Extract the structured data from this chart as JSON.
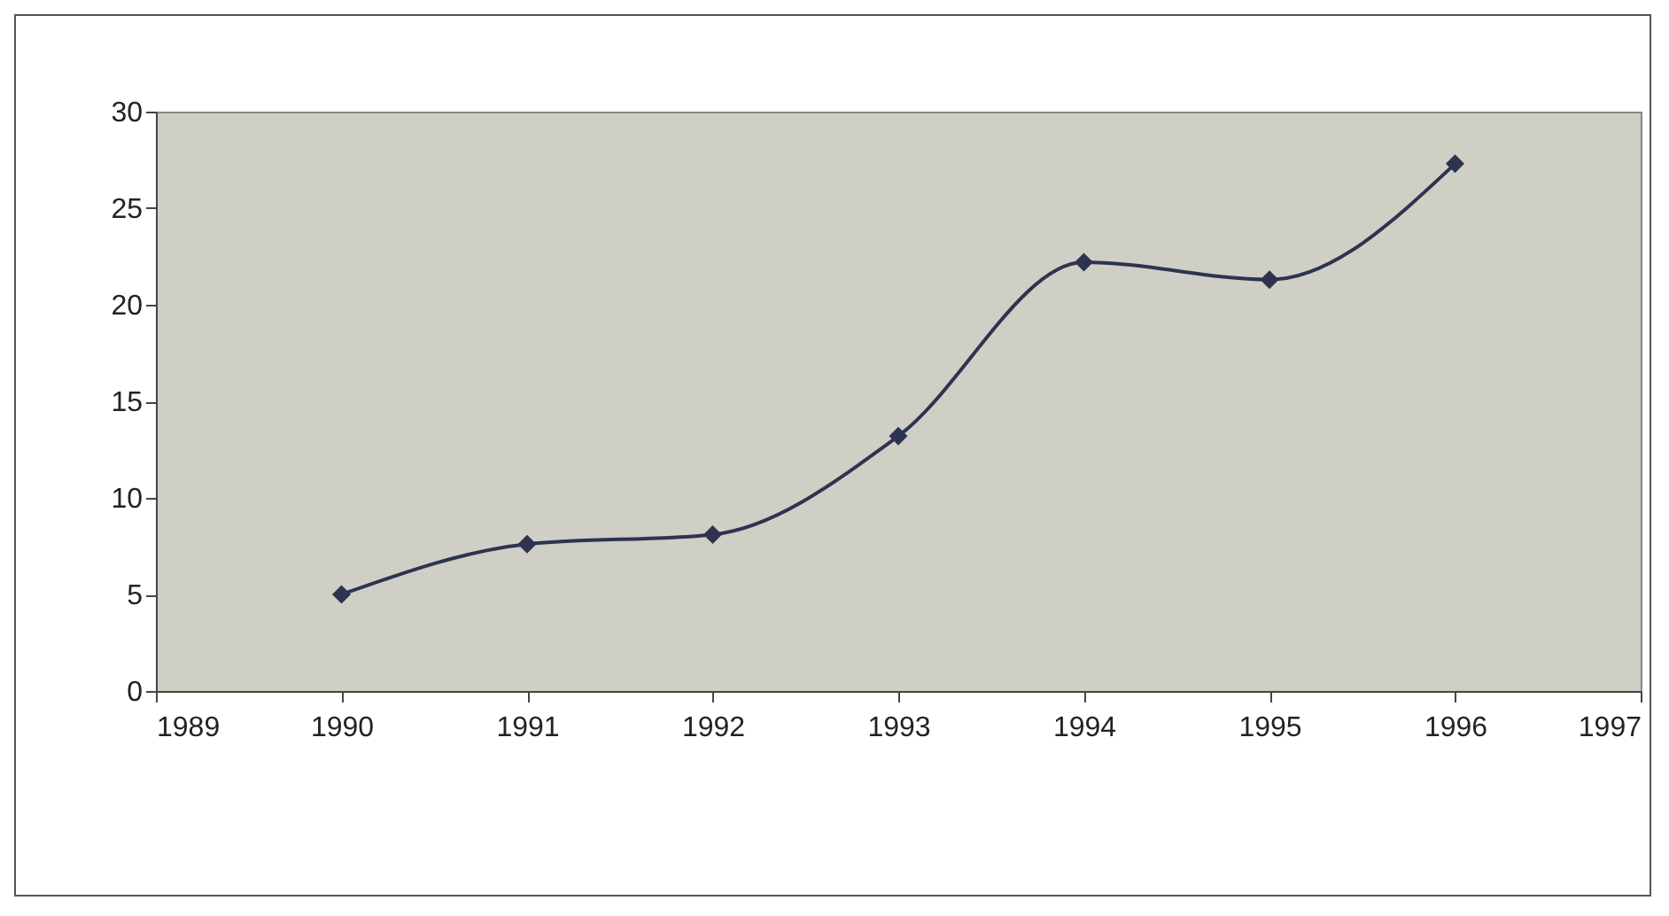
{
  "chart_data": {
    "type": "line",
    "x": [
      1990,
      1991,
      1992,
      1993,
      1994,
      1995,
      1996
    ],
    "series": [
      {
        "color": "#2e3350",
        "values": [
          5.0,
          7.6,
          8.1,
          13.2,
          22.2,
          21.3,
          27.3
        ]
      }
    ],
    "xlim": [
      1989,
      1997
    ],
    "xticks": [
      1989,
      1990,
      1991,
      1992,
      1993,
      1994,
      1995,
      1996,
      1997
    ],
    "ylim": [
      0,
      30
    ],
    "yticks": [
      0,
      5,
      10,
      15,
      20,
      25,
      30
    ],
    "grid": false,
    "marker": "diamond",
    "line_style": "solid"
  }
}
